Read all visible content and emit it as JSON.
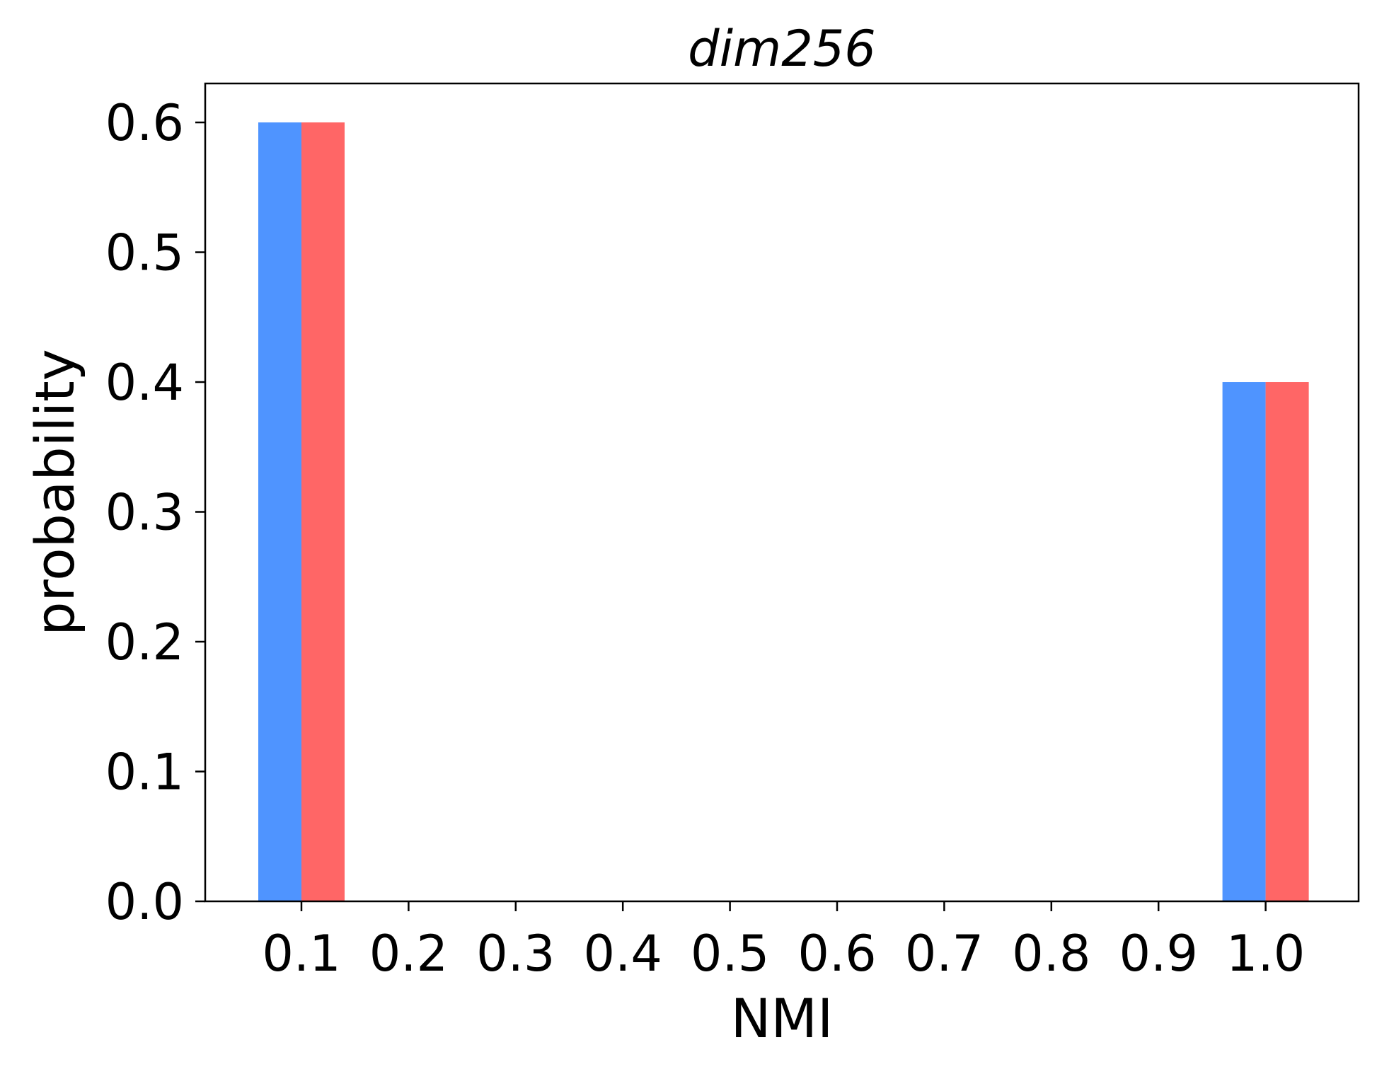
{
  "chart_data": {
    "type": "bar",
    "title": "dim256",
    "xlabel": "NMI",
    "ylabel": "probability",
    "categories": [
      "0.1",
      "0.2",
      "0.3",
      "0.4",
      "0.5",
      "0.6",
      "0.7",
      "0.8",
      "0.9",
      "1.0"
    ],
    "series": [
      {
        "color": "#4f94ff",
        "values": [
          0.6,
          0,
          0,
          0,
          0,
          0,
          0,
          0,
          0,
          0.4
        ]
      },
      {
        "color": "#ff6666",
        "values": [
          0.6,
          0,
          0,
          0,
          0,
          0,
          0,
          0,
          0,
          0.4
        ]
      }
    ],
    "yticks": [
      "0.0",
      "0.1",
      "0.2",
      "0.3",
      "0.4",
      "0.5",
      "0.6"
    ],
    "ylim": [
      0,
      0.63
    ],
    "grid": false,
    "legend": false
  }
}
